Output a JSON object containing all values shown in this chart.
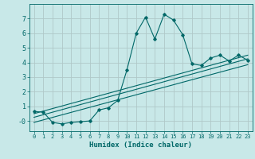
{
  "xlabel": "Humidex (Indice chaleur)",
  "background_color": "#c8e8e8",
  "grid_color": "#b0c8c8",
  "line_color": "#006868",
  "xlim": [
    -0.5,
    23.5
  ],
  "ylim": [
    -0.7,
    8.0
  ],
  "yticks": [
    0,
    1,
    2,
    3,
    4,
    5,
    6,
    7
  ],
  "ylabels": [
    "-0",
    "1",
    "2",
    "3",
    "4",
    "5",
    "6",
    "7"
  ],
  "xticks": [
    0,
    1,
    2,
    3,
    4,
    5,
    6,
    7,
    8,
    9,
    10,
    11,
    12,
    13,
    14,
    15,
    16,
    17,
    18,
    19,
    20,
    21,
    22,
    23
  ],
  "curve_x": [
    0,
    1,
    2,
    3,
    4,
    5,
    6,
    7,
    8,
    9,
    10,
    11,
    12,
    13,
    14,
    15,
    16,
    17,
    18,
    19,
    20,
    21,
    22,
    23
  ],
  "curve_y": [
    0.65,
    0.6,
    -0.1,
    -0.2,
    -0.1,
    -0.05,
    0.0,
    0.75,
    0.9,
    1.4,
    3.5,
    6.0,
    7.1,
    5.6,
    7.3,
    6.9,
    5.9,
    3.9,
    3.8,
    4.3,
    4.5,
    4.1,
    4.5,
    4.15
  ],
  "line1_x": [
    0,
    23
  ],
  "line1_y": [
    -0.1,
    3.85
  ],
  "line2_x": [
    0,
    23
  ],
  "line2_y": [
    0.25,
    4.25
  ],
  "line3_x": [
    0,
    23
  ],
  "line3_y": [
    0.5,
    4.5
  ]
}
